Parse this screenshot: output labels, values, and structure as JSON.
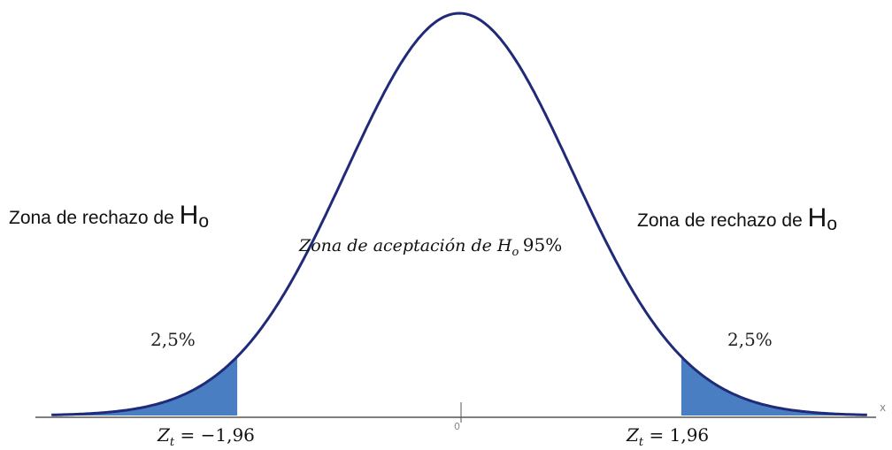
{
  "chart_data": {
    "type": "area",
    "distribution": "standard normal",
    "critical_values": [
      -1.96,
      1.96
    ],
    "tail_area_percent": [
      2.5,
      2.5
    ],
    "acceptance_percent": 95,
    "curve_color": "#1f2a78",
    "tail_fill_color": "#4a7ec3",
    "axis_label_x": "x",
    "center_tick": "0"
  },
  "labels": {
    "reject_left_text": "Zona de rechazo de ",
    "reject_right_text": "Zona de rechazo de ",
    "h_letter": "H",
    "h_sub": "o",
    "accept_text": "Zona de aceptación de ",
    "accept_h": "H",
    "accept_h_sub": "o",
    "accept_pct": "95%",
    "left_pct": "2,5%",
    "right_pct": "2,5%",
    "z_left_symbol": "Z",
    "z_left_sub": "t",
    "z_left_rest": " = −1,96",
    "z_right_symbol": "Z",
    "z_right_sub": "t",
    "z_right_rest": " = 1,96"
  }
}
